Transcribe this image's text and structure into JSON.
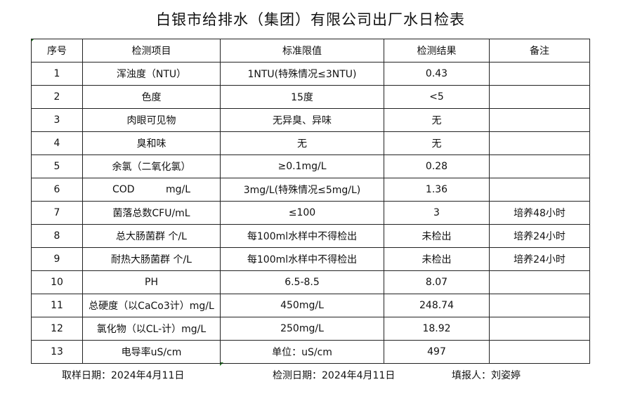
{
  "title": "白银市给排水（集团）有限公司出厂水日检表",
  "table": {
    "headers": [
      "序号",
      "检测项目",
      "标准限值",
      "检测结果",
      "备注"
    ],
    "rows": [
      [
        "1",
        "浑浊度（NTU）",
        "1NTU(特殊情况≤3NTU)",
        "0.43",
        ""
      ],
      [
        "2",
        "色度",
        "15度",
        "<5",
        ""
      ],
      [
        "3",
        "肉眼可见物",
        "无异臭、异味",
        "无",
        ""
      ],
      [
        "4",
        "臭和味",
        "无",
        "无",
        ""
      ],
      [
        "5",
        "余氯（二氧化氯）",
        "≥0.1mg/L",
        "0.28",
        ""
      ],
      [
        "6",
        "COD          mg/L",
        "3mg/L(特殊情况≤5mg/L)",
        "1.36",
        ""
      ],
      [
        "7",
        "菌落总数CFU/mL",
        "≤100",
        "3",
        "培养48小时"
      ],
      [
        "8",
        "总大肠菌群 个/L",
        "每100ml水样中不得检出",
        "未检出",
        "培养24小时"
      ],
      [
        "9",
        "耐热大肠菌群 个/L",
        "每100ml水样中不得检出",
        "未检出",
        "培养24小时"
      ],
      [
        "10",
        "PH",
        "6.5-8.5",
        "8.07",
        ""
      ],
      [
        "11",
        "总硬度（以CaCo3计）mg/L",
        "450mg/L",
        "248.74",
        ""
      ],
      [
        "12",
        "氯化物（以CL-计）mg/L",
        "250mg/L",
        "18.92",
        ""
      ],
      [
        "13",
        "电导率uS/cm",
        "单位：uS/cm",
        "497",
        ""
      ]
    ]
  },
  "footer": {
    "sampling_date": "取样日期：2024年4月11日",
    "test_date": "检测日期：2024年4月11日",
    "reporter": "填报人：刘姿婷"
  }
}
